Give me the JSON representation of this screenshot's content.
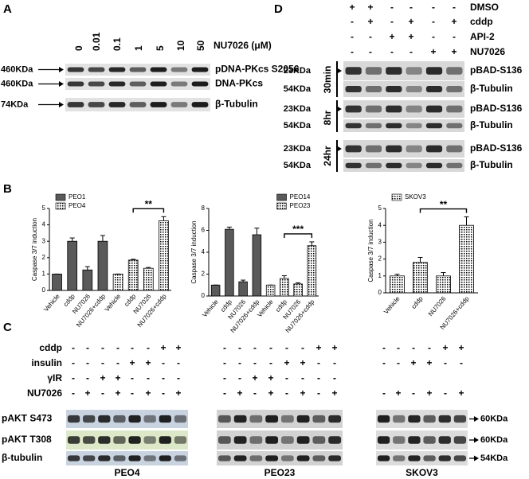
{
  "panel_a": {
    "label": "A",
    "lanes": [
      "0",
      "0.01",
      "0.1",
      "1",
      "5",
      "10",
      "50"
    ],
    "treatment": "NU7026 (μM)",
    "rows": [
      {
        "size": "460KDa",
        "name": "pDNA-PKcs S2056"
      },
      {
        "size": "460KDa",
        "name": "DNA-PKcs"
      },
      {
        "size": "74KDa",
        "name": "β-Tubulin"
      }
    ]
  },
  "panel_d": {
    "label": "D",
    "conditions": [
      {
        "name": "DMSO",
        "signs": [
          "+",
          "+",
          "-",
          "-",
          "-",
          "-"
        ]
      },
      {
        "name": "cddp",
        "signs": [
          "-",
          "+",
          "-",
          "+",
          "-",
          "+"
        ]
      },
      {
        "name": "API-2",
        "signs": [
          "-",
          "-",
          "+",
          "+",
          "-",
          "-"
        ]
      },
      {
        "name": "NU7026",
        "signs": [
          "-",
          "-",
          "-",
          "-",
          "+",
          "+"
        ]
      }
    ],
    "groups": [
      {
        "time": "30min",
        "rows": [
          {
            "size": "23KDa",
            "name": "pBAD-S136"
          },
          {
            "size": "54KDa",
            "name": "β-Tubulin"
          }
        ]
      },
      {
        "time": "8hr",
        "rows": [
          {
            "size": "23KDa",
            "name": "pBAD-S136"
          },
          {
            "size": "54KDa",
            "name": "β-Tubulin"
          }
        ]
      },
      {
        "time": "24hr",
        "rows": [
          {
            "size": "23KDa",
            "name": "pBAD-S136"
          },
          {
            "size": "54KDa",
            "name": "β-Tubulin"
          }
        ]
      }
    ]
  },
  "panel_b": {
    "label": "B"
  },
  "chart_data": [
    {
      "type": "bar",
      "ylabel": "Caspase 3/7 induction",
      "categories": [
        "Vehicle",
        "cddp",
        "NU7026",
        "NU7026+cddp"
      ],
      "series": [
        {
          "name": "PEO1",
          "color": "#5a5a5a",
          "values": [
            1,
            3,
            1.25,
            3
          ],
          "errors": [
            0,
            0.2,
            0.2,
            0.35
          ]
        },
        {
          "name": "PEO4",
          "color": "#cfcfcf",
          "values": [
            1,
            1.85,
            1.35,
            4.25
          ],
          "errors": [
            0,
            0.05,
            0.05,
            0.25
          ]
        }
      ],
      "ylim": [
        0,
        5
      ],
      "yticks": [
        0,
        1,
        2,
        3,
        4,
        5
      ],
      "annotation": "**",
      "legend": "upper left"
    },
    {
      "type": "bar",
      "ylabel": "Caspase 3/7 induction",
      "categories": [
        "Vehicle",
        "cddp",
        "NU7026",
        "NU7026+cddp"
      ],
      "series": [
        {
          "name": "PEO14",
          "color": "#5a5a5a",
          "values": [
            1,
            6.1,
            1.3,
            5.6
          ],
          "errors": [
            0,
            0.2,
            0.15,
            0.6
          ]
        },
        {
          "name": "PEO23",
          "color": "#cfcfcf",
          "values": [
            1,
            1.6,
            1.1,
            4.6
          ],
          "errors": [
            0,
            0.25,
            0.1,
            0.35
          ]
        }
      ],
      "ylim": [
        0,
        8
      ],
      "yticks": [
        0,
        2,
        4,
        6,
        8
      ],
      "annotation": "***",
      "legend": "upper right"
    },
    {
      "type": "bar",
      "ylabel": "Caspase 3/7 induction",
      "categories": [
        "Vehicle",
        "cddp",
        "NU7026",
        "NU7026+cddp"
      ],
      "series": [
        {
          "name": "SKOV3",
          "color": "#cfcfcf",
          "values": [
            1,
            1.8,
            1,
            4
          ],
          "errors": [
            0.1,
            0.3,
            0.2,
            0.5
          ]
        }
      ],
      "ylim": [
        0,
        5
      ],
      "yticks": [
        0,
        1,
        2,
        3,
        4,
        5
      ],
      "annotation": "**",
      "legend": "upper left"
    }
  ],
  "panel_c": {
    "label": "C",
    "conditions": [
      "cddp",
      "insulin",
      "γIR",
      "NU7026"
    ],
    "rows": [
      "pAKT S473",
      "pAKT T308",
      "β-tubulin"
    ],
    "blots": [
      {
        "cell": "PEO4",
        "signs": [
          [
            "-",
            "-",
            "-",
            "-",
            "-",
            "-",
            "+",
            "+"
          ],
          [
            "-",
            "-",
            "-",
            "-",
            "+",
            "+",
            "-",
            "-"
          ],
          [
            "-",
            "-",
            "+",
            "+",
            "-",
            "-",
            "-",
            "-"
          ],
          [
            "-",
            "+",
            "-",
            "+",
            "-",
            "+",
            "-",
            "+"
          ]
        ]
      },
      {
        "cell": "PEO23",
        "signs": [
          [
            "-",
            "-",
            "-",
            "-",
            "-",
            "-",
            "+",
            "+"
          ],
          [
            "-",
            "-",
            "-",
            "-",
            "+",
            "+",
            "-",
            "-"
          ],
          [
            "-",
            "-",
            "+",
            "+",
            "-",
            "-",
            "-",
            "-"
          ],
          [
            "-",
            "+",
            "-",
            "+",
            "-",
            "+",
            "-",
            "+"
          ]
        ]
      },
      {
        "cell": "SKOV3",
        "signs": [
          [
            "-",
            "-",
            "-",
            "-",
            "+",
            "+"
          ],
          [
            "-",
            "-",
            "+",
            "+",
            "-",
            "-"
          ],
          null,
          [
            "-",
            "+",
            "-",
            "+",
            "-",
            "+"
          ]
        ],
        "sizes": [
          "60KDa",
          "60KDa",
          "54KDa"
        ]
      }
    ]
  }
}
